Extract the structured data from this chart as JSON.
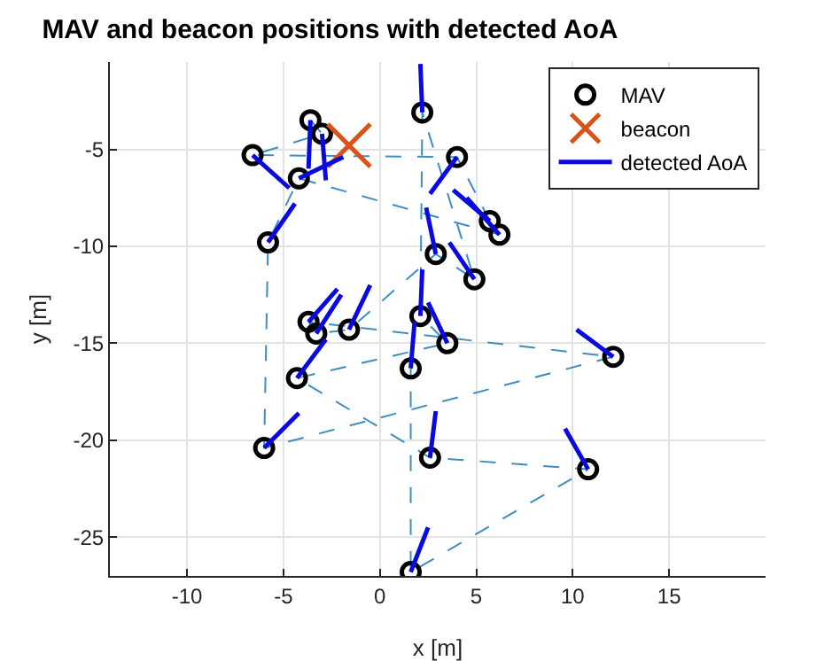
{
  "chart_data": {
    "type": "scatter",
    "title": "MAV and beacon positions with detected AoA",
    "xlabel": "x [m]",
    "ylabel": "y [m]",
    "xlim": [
      -14,
      20
    ],
    "ylim": [
      -27,
      -0.5
    ],
    "xticks": [
      -10,
      -5,
      0,
      5,
      10,
      15
    ],
    "yticks": [
      -25,
      -20,
      -15,
      -10,
      -5
    ],
    "grid": true,
    "legend": "top right",
    "series": [
      {
        "type": "line",
        "color": "#3d8ec0",
        "line_style": "dashed",
        "marker": "none",
        "x": [
          -3.6,
          -3.0,
          -6.6,
          4.0,
          5.7,
          6.2,
          -4.2,
          -5.8,
          -6.0,
          12.1,
          -3.7,
          -3.3,
          -1.6,
          2.9,
          4.9,
          2.2,
          2.1,
          3.5,
          -4.3,
          2.6,
          10.8,
          1.6,
          1.6
        ],
        "values": [
          -3.5,
          -4.2,
          -5.3,
          -5.4,
          -8.7,
          -9.4,
          -6.5,
          -9.8,
          -20.4,
          -15.7,
          -13.9,
          -14.5,
          -14.3,
          -10.4,
          -11.7,
          -3.1,
          -13.6,
          -15.0,
          -16.8,
          -20.9,
          -21.5,
          -26.8,
          -16.3
        ]
      },
      {
        "name": "MAV",
        "color": "#000000",
        "marker": "circle",
        "x": [
          -6.6,
          -3.6,
          -3.0,
          -4.2,
          -5.8,
          2.2,
          4.0,
          5.7,
          6.2,
          2.9,
          4.9,
          -3.7,
          -3.3,
          -1.6,
          2.1,
          3.5,
          1.6,
          -4.3,
          -6.0,
          2.6,
          12.1,
          10.8,
          1.6
        ],
        "values": [
          -5.3,
          -3.5,
          -4.2,
          -6.5,
          -9.8,
          -3.1,
          -5.4,
          -8.7,
          -9.4,
          -10.4,
          -11.7,
          -13.9,
          -14.5,
          -14.3,
          -13.6,
          -15.0,
          -16.3,
          -16.8,
          -20.4,
          -20.9,
          -15.7,
          -21.5,
          -26.8
        ]
      },
      {
        "name": "beacon",
        "color": "#d95319",
        "marker": "cross",
        "x": [
          -1.6
        ],
        "values": [
          -4.8
        ]
      },
      {
        "type": "line",
        "name": "detected AoA",
        "color": "#0a0ae0",
        "line_style": "solid",
        "marker": "none",
        "x": [
          -6.6,
          -4.7
        ],
        "values": [
          -5.3,
          -7.0
        ]
      },
      {
        "type": "line",
        "color": "#0a0ae0",
        "line_style": "solid",
        "marker": "none",
        "x": [
          -3.6,
          -3.7
        ],
        "values": [
          -3.5,
          -6.0
        ]
      },
      {
        "type": "line",
        "color": "#0a0ae0",
        "line_style": "solid",
        "marker": "none",
        "x": [
          -3.0,
          -2.8
        ],
        "values": [
          -4.2,
          -6.6
        ]
      },
      {
        "type": "line",
        "color": "#0a0ae0",
        "line_style": "solid",
        "marker": "none",
        "x": [
          -4.2,
          -1.9
        ],
        "values": [
          -6.5,
          -5.4
        ]
      },
      {
        "type": "line",
        "color": "#0a0ae0",
        "line_style": "solid",
        "marker": "none",
        "x": [
          -5.8,
          -4.4
        ],
        "values": [
          -9.8,
          -7.8
        ]
      },
      {
        "type": "line",
        "color": "#0a0ae0",
        "line_style": "solid",
        "marker": "none",
        "x": [
          2.2,
          2.1
        ],
        "values": [
          -3.1,
          -0.6
        ]
      },
      {
        "type": "line",
        "color": "#0a0ae0",
        "line_style": "solid",
        "marker": "none",
        "x": [
          4.0,
          2.6
        ],
        "values": [
          -5.4,
          -7.3
        ]
      },
      {
        "type": "line",
        "color": "#0a0ae0",
        "line_style": "solid",
        "marker": "none",
        "x": [
          5.7,
          3.8
        ],
        "values": [
          -8.7,
          -7.1
        ]
      },
      {
        "type": "line",
        "color": "#0a0ae0",
        "line_style": "solid",
        "marker": "none",
        "x": [
          6.2,
          4.5
        ],
        "values": [
          -9.4,
          -7.5
        ]
      },
      {
        "type": "line",
        "color": "#0a0ae0",
        "line_style": "solid",
        "marker": "none",
        "x": [
          2.9,
          2.4
        ],
        "values": [
          -10.4,
          -8.0
        ]
      },
      {
        "type": "line",
        "color": "#0a0ae0",
        "line_style": "solid",
        "marker": "none",
        "x": [
          4.9,
          3.6
        ],
        "values": [
          -11.7,
          -9.8
        ]
      },
      {
        "type": "line",
        "color": "#0a0ae0",
        "line_style": "solid",
        "marker": "none",
        "x": [
          -3.7,
          -2.2
        ],
        "values": [
          -13.9,
          -12.2
        ]
      },
      {
        "type": "line",
        "color": "#0a0ae0",
        "line_style": "solid",
        "marker": "none",
        "x": [
          -3.3,
          -2.0
        ],
        "values": [
          -14.5,
          -12.5
        ]
      },
      {
        "type": "line",
        "color": "#0a0ae0",
        "line_style": "solid",
        "marker": "none",
        "x": [
          -1.6,
          -0.5
        ],
        "values": [
          -14.3,
          -12.0
        ]
      },
      {
        "type": "line",
        "color": "#0a0ae0",
        "line_style": "solid",
        "marker": "none",
        "x": [
          2.1,
          2.2
        ],
        "values": [
          -13.6,
          -11.2
        ]
      },
      {
        "type": "line",
        "color": "#0a0ae0",
        "line_style": "solid",
        "marker": "none",
        "x": [
          3.5,
          2.5
        ],
        "values": [
          -15.0,
          -12.9
        ]
      },
      {
        "type": "line",
        "color": "#0a0ae0",
        "line_style": "solid",
        "marker": "none",
        "x": [
          1.6,
          1.8
        ],
        "values": [
          -16.3,
          -13.9
        ]
      },
      {
        "type": "line",
        "color": "#0a0ae0",
        "line_style": "solid",
        "marker": "none",
        "x": [
          -4.3,
          -2.8
        ],
        "values": [
          -16.8,
          -14.8
        ]
      },
      {
        "type": "line",
        "color": "#0a0ae0",
        "line_style": "solid",
        "marker": "none",
        "x": [
          -6.0,
          -4.2
        ],
        "values": [
          -20.4,
          -18.6
        ]
      },
      {
        "type": "line",
        "color": "#0a0ae0",
        "line_style": "solid",
        "marker": "none",
        "x": [
          2.6,
          2.9
        ],
        "values": [
          -20.9,
          -18.5
        ]
      },
      {
        "type": "line",
        "color": "#0a0ae0",
        "line_style": "solid",
        "marker": "none",
        "x": [
          12.1,
          10.2
        ],
        "values": [
          -15.7,
          -14.3
        ]
      },
      {
        "type": "line",
        "color": "#0a0ae0",
        "line_style": "solid",
        "marker": "none",
        "x": [
          10.8,
          9.6
        ],
        "values": [
          -21.5,
          -19.4
        ]
      },
      {
        "type": "line",
        "color": "#0a0ae0",
        "line_style": "solid",
        "marker": "none",
        "x": [
          1.6,
          2.5
        ],
        "values": [
          -26.8,
          -24.5
        ]
      }
    ]
  }
}
